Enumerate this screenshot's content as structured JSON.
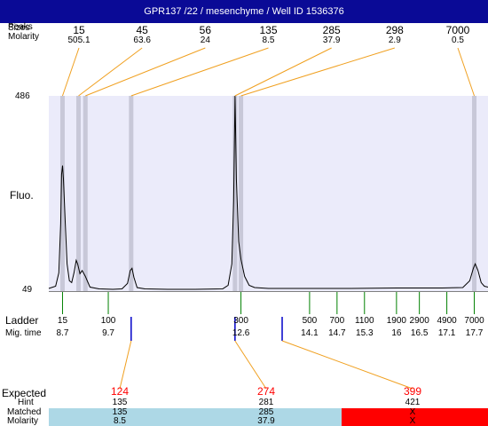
{
  "title": "GPR137 /22 / mesenchyme / Well ID 1536376",
  "labels": {
    "peaks_overlap_a": "Peaks",
    "peaks_overlap_b": "Sizes",
    "molarity": "Molarity",
    "fluo": "Fluo.",
    "ladder": "Ladder",
    "mig_time": "Mig. time",
    "expected": "Expected",
    "hint": "Hint",
    "matched": "Matched",
    "molarity_bottom": "Molarity"
  },
  "colors": {
    "title_bg": "#0a0a96",
    "plot_bg": "#ebebfa",
    "peak_marker": "#c8c8d8",
    "connector": "#f0a020",
    "ladder_tick": "#008000",
    "mig_tick": "#0000c8",
    "expected_text": "#ff0000",
    "matched_ok": "#add8e6",
    "matched_fail": "#ff0000"
  },
  "chart_data": {
    "type": "line",
    "y_axis_labels": [
      "486",
      "49"
    ],
    "ylim": [
      49,
      486
    ],
    "xlim": [
      8.4,
      18.0
    ],
    "peaks": [
      {
        "size": "15",
        "molarity": "505.1",
        "time": 8.7
      },
      {
        "size": "45",
        "molarity": "63.6",
        "time": 9.05
      },
      {
        "size": "56",
        "molarity": "24",
        "time": 9.2
      },
      {
        "size": "135",
        "molarity": "8.5",
        "time": 10.2
      },
      {
        "size": "285",
        "molarity": "37.9",
        "time": 12.47
      },
      {
        "size": "298",
        "molarity": "2.9",
        "time": 12.6
      },
      {
        "size": "7000",
        "molarity": "0.5",
        "time": 17.7
      }
    ],
    "ladder": [
      {
        "size": "15",
        "time": "8.7"
      },
      {
        "size": "100",
        "time": "9.7"
      },
      {
        "size": "300",
        "time": "12.6"
      },
      {
        "size": "500",
        "time": "14.1"
      },
      {
        "size": "700",
        "time": "14.7"
      },
      {
        "size": "1100",
        "time": "15.3"
      },
      {
        "size": "1900",
        "time": "16"
      },
      {
        "size": "2900",
        "time": "16.5"
      },
      {
        "size": "4900",
        "time": "17.1"
      },
      {
        "size": "7000",
        "time": "17.7"
      }
    ],
    "trace": [
      [
        8.4,
        55
      ],
      [
        8.55,
        60
      ],
      [
        8.62,
        90
      ],
      [
        8.66,
        200
      ],
      [
        8.68,
        310
      ],
      [
        8.7,
        330
      ],
      [
        8.72,
        300
      ],
      [
        8.76,
        200
      ],
      [
        8.8,
        110
      ],
      [
        8.85,
        72
      ],
      [
        8.9,
        68
      ],
      [
        8.95,
        90
      ],
      [
        9.0,
        118
      ],
      [
        9.03,
        110
      ],
      [
        9.08,
        88
      ],
      [
        9.13,
        95
      ],
      [
        9.2,
        82
      ],
      [
        9.3,
        58
      ],
      [
        9.5,
        54
      ],
      [
        9.8,
        53
      ],
      [
        10.0,
        54
      ],
      [
        10.12,
        66
      ],
      [
        10.18,
        95
      ],
      [
        10.22,
        100
      ],
      [
        10.26,
        80
      ],
      [
        10.33,
        57
      ],
      [
        10.5,
        54
      ],
      [
        11.0,
        53
      ],
      [
        11.6,
        53
      ],
      [
        12.2,
        54
      ],
      [
        12.32,
        62
      ],
      [
        12.4,
        110
      ],
      [
        12.44,
        250
      ],
      [
        12.47,
        486
      ],
      [
        12.5,
        300
      ],
      [
        12.55,
        160
      ],
      [
        12.6,
        120
      ],
      [
        12.68,
        82
      ],
      [
        12.78,
        62
      ],
      [
        12.9,
        57
      ],
      [
        13.2,
        55
      ],
      [
        14.0,
        55
      ],
      [
        15.0,
        55
      ],
      [
        16.0,
        56
      ],
      [
        17.0,
        56
      ],
      [
        17.45,
        57
      ],
      [
        17.6,
        72
      ],
      [
        17.68,
        100
      ],
      [
        17.72,
        110
      ],
      [
        17.78,
        95
      ],
      [
        17.85,
        68
      ],
      [
        17.92,
        60
      ],
      [
        18.0,
        58
      ]
    ],
    "expected": [
      {
        "expected": "124",
        "hint": "135",
        "matched": "135",
        "molarity": "8.5",
        "status": "ok"
      },
      {
        "expected": "274",
        "hint": "281",
        "matched": "285",
        "molarity": "37.9",
        "status": "ok"
      },
      {
        "expected": "399",
        "hint": "421",
        "matched": "X",
        "molarity": "X",
        "status": "fail"
      }
    ]
  }
}
